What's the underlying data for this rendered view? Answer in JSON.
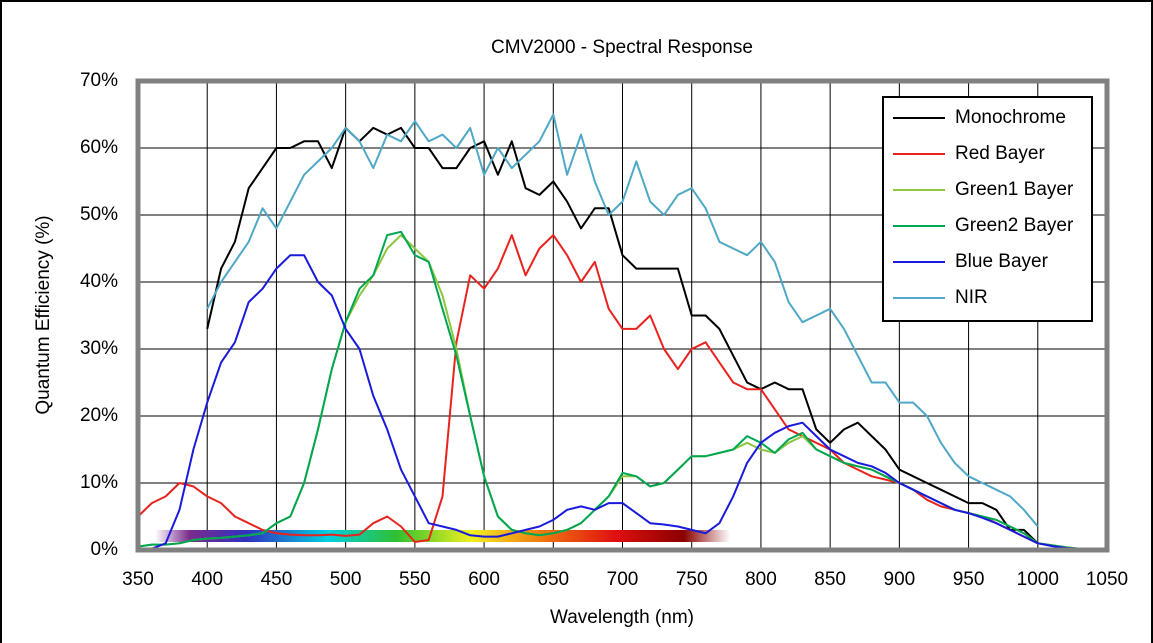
{
  "chart_data": {
    "type": "line",
    "title": "CMV2000 - Spectral Response",
    "x_label": "Wavelength (nm)",
    "y_label": "Quantum Efficiency (%)",
    "x": [
      350,
      360,
      370,
      380,
      390,
      400,
      410,
      420,
      430,
      440,
      450,
      460,
      470,
      480,
      490,
      500,
      510,
      520,
      530,
      540,
      550,
      560,
      570,
      580,
      590,
      600,
      610,
      620,
      630,
      640,
      650,
      660,
      670,
      680,
      690,
      700,
      710,
      720,
      730,
      740,
      750,
      760,
      770,
      780,
      790,
      800,
      810,
      820,
      830,
      840,
      850,
      860,
      870,
      880,
      890,
      900,
      910,
      920,
      930,
      940,
      950,
      960,
      970,
      980,
      990,
      1000,
      1010,
      1020,
      1030,
      1040,
      1050
    ],
    "series": [
      {
        "name": "Monochrome",
        "color": "#000000",
        "values": [
          null,
          null,
          null,
          null,
          null,
          33,
          42,
          46,
          54,
          57,
          60,
          60,
          61,
          61,
          57,
          63,
          61,
          63,
          62,
          63,
          60,
          60,
          57,
          57,
          60,
          61,
          56,
          61,
          54,
          53,
          55,
          52,
          48,
          51,
          51,
          44,
          42,
          42,
          42,
          42,
          35,
          35,
          33,
          29,
          25,
          24,
          25,
          24,
          24,
          18,
          16,
          18,
          19,
          17,
          15,
          12,
          11,
          10,
          9,
          8,
          7,
          7,
          6,
          3,
          3,
          1,
          null,
          null,
          null,
          null,
          null
        ]
      },
      {
        "name": "Red Bayer",
        "color": "#e8231e",
        "values": [
          5,
          7,
          8,
          10,
          9.5,
          8,
          7,
          5,
          4,
          3,
          2.5,
          2.3,
          2.2,
          2.2,
          2.3,
          2.1,
          2.3,
          4,
          5,
          3.5,
          1.2,
          1.5,
          8,
          31,
          41,
          39,
          42,
          47,
          41,
          45,
          47,
          44,
          40,
          43,
          36,
          33,
          33,
          35,
          30,
          27,
          30,
          31,
          28,
          25,
          24,
          24,
          21,
          18,
          17,
          16,
          15,
          13,
          12,
          11,
          10.5,
          10,
          9,
          7.5,
          6.5,
          6,
          5.5,
          5,
          4,
          3,
          2,
          1,
          0.7,
          0.4,
          0.2,
          0.1,
          0
        ]
      },
      {
        "name": "Green1 Bayer",
        "color": "#8dc63f",
        "values": [
          0.5,
          0.8,
          0.8,
          1,
          1.5,
          1.7,
          1.8,
          2,
          2.2,
          2.5,
          4,
          5,
          10,
          18,
          27,
          34,
          38,
          41,
          45,
          47,
          45,
          43,
          38,
          30,
          20,
          11,
          5,
          3,
          2.5,
          2.2,
          2.5,
          3,
          4,
          6,
          8,
          11,
          11,
          9.5,
          10,
          12,
          14,
          14,
          14.5,
          15,
          16,
          15,
          14.5,
          16,
          17,
          15,
          14,
          13,
          12.5,
          12,
          11,
          10,
          9,
          8,
          7,
          6,
          5.5,
          5,
          4.5,
          3.5,
          2.5,
          1,
          0.7,
          0.4,
          0.2,
          0.1,
          0
        ]
      },
      {
        "name": "Green2 Bayer",
        "color": "#00a651",
        "values": [
          0.5,
          0.8,
          0.8,
          1,
          1.5,
          1.7,
          1.8,
          2,
          2.2,
          2.5,
          4,
          5,
          10,
          18,
          27,
          34,
          39,
          41,
          47,
          47.5,
          44,
          43,
          36,
          29,
          20,
          11,
          5,
          3,
          2.5,
          2.2,
          2.5,
          3,
          4,
          6,
          8,
          11.5,
          11,
          9.5,
          10,
          12,
          14,
          14,
          14.5,
          15,
          17,
          16,
          14.5,
          16.5,
          17.5,
          15,
          14,
          13,
          12.5,
          12,
          11,
          10,
          9,
          8,
          7,
          6,
          5.5,
          5,
          4.5,
          3.5,
          2.5,
          1,
          0.7,
          0.4,
          0.2,
          0.1,
          0
        ]
      },
      {
        "name": "Blue Bayer",
        "color": "#1a1adc",
        "values": [
          0,
          0.2,
          1,
          6,
          15,
          22,
          28,
          31,
          37,
          39,
          42,
          44,
          44,
          40,
          38,
          33,
          30,
          23,
          18,
          12,
          8,
          4,
          3.5,
          3,
          2.2,
          2,
          2,
          2.5,
          3,
          3.5,
          4.5,
          6,
          6.5,
          6,
          7,
          7,
          5.5,
          4,
          3.8,
          3.5,
          3,
          2.5,
          4,
          8,
          13,
          16,
          17.5,
          18.5,
          19,
          17,
          15,
          14,
          13,
          12.5,
          11.5,
          10,
          9,
          8,
          7,
          6,
          5.5,
          4.8,
          4,
          3,
          2,
          1,
          0.6,
          0.3,
          0.2,
          0.1,
          0
        ]
      },
      {
        "name": "NIR",
        "color": "#4fa8c6",
        "values": [
          null,
          null,
          null,
          null,
          null,
          36,
          40,
          43,
          46,
          51,
          48,
          52,
          56,
          58,
          60,
          63,
          61,
          57,
          62,
          61,
          64,
          61,
          62,
          60,
          63,
          56,
          60,
          57,
          59,
          61,
          65,
          56,
          62,
          55,
          50,
          52,
          58,
          52,
          50,
          53,
          54,
          51,
          46,
          45,
          44,
          46,
          43,
          37,
          34,
          35,
          36,
          33,
          29,
          25,
          25,
          22,
          22,
          20,
          16,
          13,
          11,
          10,
          9,
          8,
          6,
          3.5,
          null,
          null,
          null,
          null,
          null
        ]
      }
    ],
    "xlim": [
      350,
      1050
    ],
    "xticks": [
      350,
      400,
      450,
      500,
      550,
      600,
      650,
      700,
      750,
      800,
      850,
      900,
      950,
      1000,
      1050
    ],
    "ylim": [
      0,
      70
    ],
    "yticks": [
      {
        "value": 0,
        "label": "0%"
      },
      {
        "value": 10,
        "label": "10%"
      },
      {
        "value": 20,
        "label": "20%"
      },
      {
        "value": 30,
        "label": "30%"
      },
      {
        "value": 40,
        "label": "40%"
      },
      {
        "value": 50,
        "label": "50%"
      },
      {
        "value": 60,
        "label": "60%"
      },
      {
        "value": 70,
        "label": "70%"
      }
    ],
    "grid": true,
    "legend": "upper right"
  }
}
